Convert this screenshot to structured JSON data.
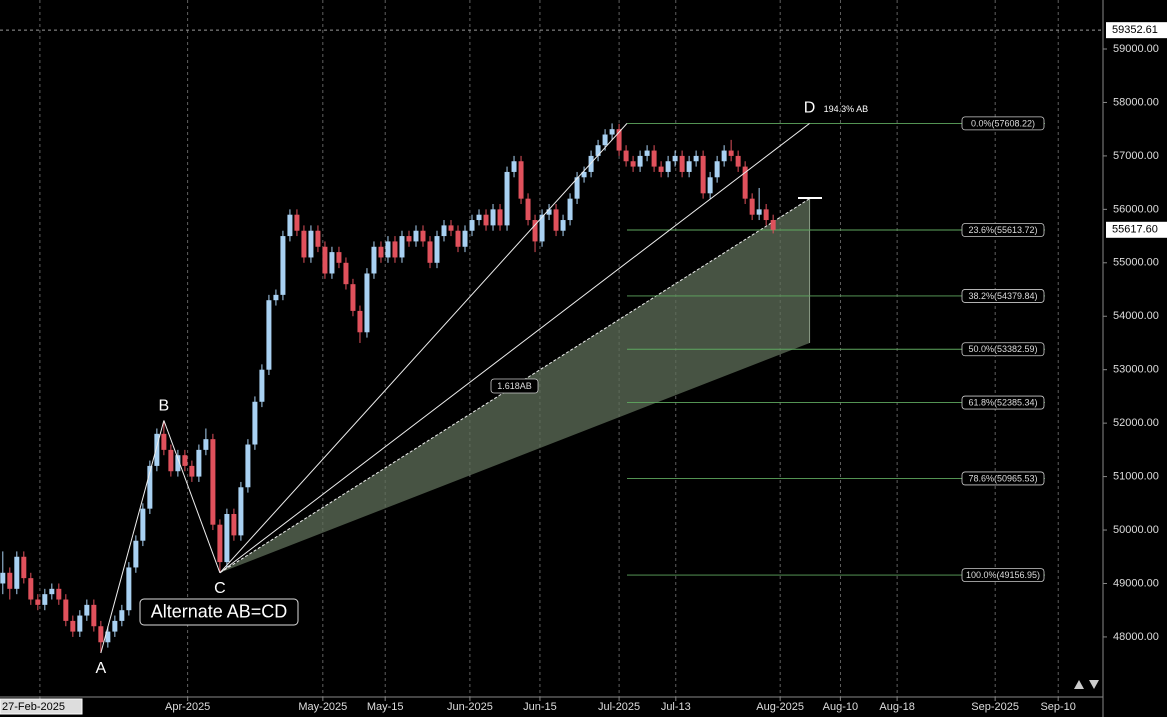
{
  "chart_data": {
    "type": "candlestick",
    "xlim": [
      -0.4,
      157.1
    ],
    "ylim": [
      46876,
      59917
    ],
    "candles": [
      [
        49000,
        49600,
        48800,
        49200
      ],
      [
        49200,
        49300,
        48700,
        48900
      ],
      [
        48900,
        49600,
        48800,
        49500
      ],
      [
        49500,
        49600,
        49000,
        49100
      ],
      [
        49100,
        49200,
        48600,
        48700
      ],
      [
        48700,
        48800,
        48500,
        48600
      ],
      [
        48600,
        48900,
        48500,
        48800
      ],
      [
        48800,
        49000,
        48700,
        48900
      ],
      [
        48900,
        49000,
        48600,
        48700
      ],
      [
        48700,
        48800,
        48200,
        48300
      ],
      [
        48300,
        48400,
        48000,
        48100
      ],
      [
        48100,
        48500,
        48000,
        48400
      ],
      [
        48400,
        48700,
        48300,
        48600
      ],
      [
        48600,
        48700,
        48100,
        48200
      ],
      [
        48200,
        48300,
        47700,
        47900
      ],
      [
        47900,
        48200,
        47800,
        48100
      ],
      [
        48100,
        48400,
        48000,
        48300
      ],
      [
        48300,
        48600,
        48200,
        48500
      ],
      [
        48500,
        49400,
        48400,
        49300
      ],
      [
        49300,
        49900,
        49200,
        49800
      ],
      [
        49800,
        50500,
        49700,
        50400
      ],
      [
        50400,
        51300,
        50300,
        51200
      ],
      [
        51200,
        51900,
        51100,
        51800
      ],
      [
        51800,
        52050,
        51400,
        51500
      ],
      [
        51500,
        51600,
        51000,
        51100
      ],
      [
        51100,
        51500,
        51000,
        51400
      ],
      [
        51400,
        51500,
        51100,
        51200
      ],
      [
        51200,
        51300,
        50900,
        51000
      ],
      [
        51000,
        51600,
        50900,
        51500
      ],
      [
        51500,
        51900,
        51400,
        51700
      ],
      [
        51700,
        51800,
        50000,
        50100
      ],
      [
        50100,
        50200,
        49200,
        49400
      ],
      [
        49400,
        50400,
        49300,
        50300
      ],
      [
        50300,
        50400,
        49800,
        49900
      ],
      [
        49900,
        50900,
        49800,
        50800
      ],
      [
        50800,
        51700,
        50700,
        51600
      ],
      [
        51600,
        52500,
        51500,
        52400
      ],
      [
        52400,
        53100,
        52300,
        53000
      ],
      [
        53000,
        54400,
        52900,
        54300
      ],
      [
        54300,
        54500,
        54200,
        54400
      ],
      [
        54400,
        55600,
        54300,
        55500
      ],
      [
        55500,
        56000,
        55400,
        55900
      ],
      [
        55900,
        56000,
        55500,
        55600
      ],
      [
        55600,
        55700,
        55000,
        55100
      ],
      [
        55100,
        55700,
        55000,
        55600
      ],
      [
        55600,
        55700,
        55200,
        55300
      ],
      [
        55300,
        55400,
        54700,
        54800
      ],
      [
        54800,
        55300,
        54700,
        55200
      ],
      [
        55200,
        55300,
        54900,
        55000
      ],
      [
        55000,
        55100,
        54500,
        54600
      ],
      [
        54600,
        54700,
        54000,
        54100
      ],
      [
        54100,
        54200,
        53500,
        53700
      ],
      [
        53700,
        54900,
        53600,
        54800
      ],
      [
        54800,
        55400,
        54700,
        55300
      ],
      [
        55300,
        55400,
        55000,
        55100
      ],
      [
        55100,
        55500,
        55000,
        55400
      ],
      [
        55400,
        55500,
        55000,
        55100
      ],
      [
        55100,
        55600,
        55000,
        55500
      ],
      [
        55500,
        55600,
        55300,
        55400
      ],
      [
        55400,
        55700,
        55300,
        55600
      ],
      [
        55600,
        55700,
        55300,
        55400
      ],
      [
        55400,
        55500,
        54900,
        55000
      ],
      [
        55000,
        55600,
        54900,
        55500
      ],
      [
        55500,
        55800,
        55400,
        55700
      ],
      [
        55700,
        55800,
        55500,
        55600
      ],
      [
        55600,
        55700,
        55200,
        55300
      ],
      [
        55300,
        55700,
        55200,
        55600
      ],
      [
        55600,
        55900,
        55500,
        55800
      ],
      [
        55800,
        56000,
        55700,
        55900
      ],
      [
        55900,
        56000,
        55600,
        55700
      ],
      [
        55700,
        56100,
        55600,
        56000
      ],
      [
        56000,
        56100,
        55600,
        55700
      ],
      [
        55700,
        56800,
        55600,
        56700
      ],
      [
        56700,
        57000,
        56600,
        56900
      ],
      [
        56900,
        57000,
        56100,
        56200
      ],
      [
        56200,
        56300,
        55700,
        55800
      ],
      [
        55800,
        55900,
        55200,
        55400
      ],
      [
        55400,
        56000,
        55300,
        55900
      ],
      [
        55900,
        56100,
        55800,
        56000
      ],
      [
        56000,
        56100,
        55500,
        55600
      ],
      [
        55600,
        55900,
        55500,
        55800
      ],
      [
        55800,
        56300,
        55700,
        56200
      ],
      [
        56200,
        56700,
        56100,
        56600
      ],
      [
        56600,
        56800,
        56500,
        56700
      ],
      [
        56700,
        57100,
        56600,
        57000
      ],
      [
        57000,
        57300,
        56900,
        57200
      ],
      [
        57200,
        57500,
        57100,
        57400
      ],
      [
        57400,
        57608,
        57300,
        57500
      ],
      [
        57500,
        57600,
        57000,
        57100
      ],
      [
        57100,
        57200,
        56800,
        56900
      ],
      [
        56900,
        57000,
        56700,
        56800
      ],
      [
        56800,
        57100,
        56700,
        57000
      ],
      [
        57000,
        57200,
        56900,
        57100
      ],
      [
        57100,
        57200,
        56700,
        56800
      ],
      [
        56800,
        56900,
        56600,
        56700
      ],
      [
        56700,
        57000,
        56600,
        56900
      ],
      [
        56900,
        57100,
        56800,
        57000
      ],
      [
        57000,
        57100,
        56600,
        56700
      ],
      [
        56700,
        57000,
        56600,
        56900
      ],
      [
        56900,
        57100,
        56800,
        57000
      ],
      [
        57000,
        57100,
        56200,
        56300
      ],
      [
        56300,
        56700,
        56200,
        56600
      ],
      [
        56600,
        57000,
        56500,
        56900
      ],
      [
        56900,
        57200,
        56800,
        57100
      ],
      [
        57100,
        57300,
        56900,
        57000
      ],
      [
        57000,
        57100,
        56700,
        56800
      ],
      [
        56800,
        56900,
        56100,
        56200
      ],
      [
        56200,
        56300,
        55800,
        55900
      ],
      [
        55900,
        56400,
        55800,
        56000
      ],
      [
        56000,
        56100,
        55700,
        55800
      ],
      [
        55800,
        55900,
        55550,
        55617.6
      ]
    ],
    "up_color": "#a9d1f2",
    "down_color": "#e0515c",
    "yticks": [
      {
        "value": 48000,
        "label": "48000.00"
      },
      {
        "value": 49000,
        "label": "49000.00"
      },
      {
        "value": 50000,
        "label": "50000.00"
      },
      {
        "value": 51000,
        "label": "51000.00"
      },
      {
        "value": 52000,
        "label": "52000.00"
      },
      {
        "value": 53000,
        "label": "53000.00"
      },
      {
        "value": 54000,
        "label": "54000.00"
      },
      {
        "value": 55000,
        "label": "55000.00"
      },
      {
        "value": 56000,
        "label": "56000.00"
      },
      {
        "value": 57000,
        "label": "57000.00"
      },
      {
        "value": 58000,
        "label": "58000.00"
      },
      {
        "value": 59000,
        "label": "59000.00"
      }
    ],
    "xticks": [
      {
        "value": 5.3,
        "label": "27-Feb-2025"
      },
      {
        "value": 26.4,
        "label": "Apr-2025"
      },
      {
        "value": 45.7,
        "label": "May-2025"
      },
      {
        "value": 54.6,
        "label": "May-15"
      },
      {
        "value": 66.7,
        "label": "Jun-2025"
      },
      {
        "value": 76.7,
        "label": "Jun-15"
      },
      {
        "value": 88,
        "label": "Jul-2025"
      },
      {
        "value": 96.1,
        "label": "Jul-13"
      },
      {
        "value": 111,
        "label": "Aug-2025"
      },
      {
        "value": 119.6,
        "label": "Aug-10"
      },
      {
        "value": 127.7,
        "label": "Aug-18"
      },
      {
        "value": 141.7,
        "label": "Sep-2025"
      },
      {
        "value": 150.7,
        "label": "Sep-10"
      }
    ],
    "grid": true,
    "crosshair_price": 59352.61,
    "last_price": {
      "value": 55617.6,
      "label": "55617.60"
    },
    "fib_levels": [
      {
        "value": 57608.22,
        "label": "0.0%(57608.22)"
      },
      {
        "value": 55613.72,
        "label": "23.6%(55613.72)"
      },
      {
        "value": 54379.84,
        "label": "38.2%(54379.84)"
      },
      {
        "value": 53382.59,
        "label": "50.0%(53382.59)"
      },
      {
        "value": 52385.34,
        "label": "61.8%(52385.34)"
      },
      {
        "value": 50965.53,
        "label": "78.6%(50965.53)"
      },
      {
        "value": 49156.95,
        "label": "100.0%(49156.95)"
      }
    ],
    "fib_color": "#5fa85f",
    "pattern_points": [
      {
        "label": "A",
        "x": 14,
        "y": 47700
      },
      {
        "label": "B",
        "x": 23,
        "y": 52050
      },
      {
        "label": "C",
        "x": 31,
        "y": 49200
      },
      {
        "label": "D",
        "x": 115.2,
        "y": 57608
      }
    ],
    "projection": {
      "x": 115.2,
      "upper": 56200,
      "lower": 53500,
      "label": "1.618AB"
    },
    "d_annotation": "194.3% AB",
    "pattern_title": "Alternate AB=CD"
  }
}
